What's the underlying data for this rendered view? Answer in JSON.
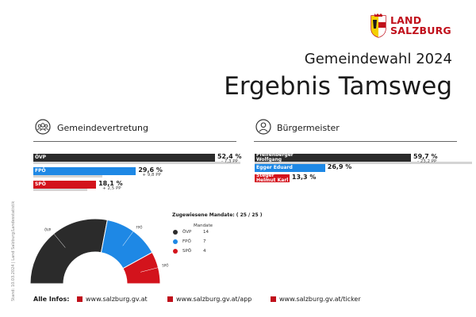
{
  "brand": {
    "line1": "LAND",
    "line2": "SALZBURG",
    "color": "#c0101b"
  },
  "event": "Gemeindewahl 2024",
  "title": "Ergebnis Tamsweg",
  "council": {
    "heading": "Gemeindevertretung",
    "icon": "people-group-icon"
  },
  "mayor": {
    "heading": "Bürgermeister",
    "icon": "person-icon"
  },
  "chart_data": [
    {
      "type": "bar",
      "orientation": "horizontal",
      "categories": [
        "ÖVP",
        "FPÖ",
        "SPÖ"
      ],
      "values": [
        52.4,
        29.6,
        18.1
      ],
      "value_labels": [
        "52,4 %",
        "29,6 %",
        "18,1 %"
      ],
      "previous_values": [
        59.7,
        19.8,
        15.6
      ],
      "change_labels": [
        "- 7,3 PP",
        "+ 9,8 PP",
        "+ 2,5 PP"
      ],
      "colors": [
        "#2b2b2b",
        "#1e88e5",
        "#d3131c"
      ],
      "xlim": [
        0,
        100
      ]
    },
    {
      "type": "bar",
      "orientation": "horizontal",
      "categories": [
        [
          "Pfeifenberger",
          "Wolfgang"
        ],
        [
          "Egger Eduard"
        ],
        [
          "Steger",
          "Helmut Karl"
        ]
      ],
      "values": [
        59.7,
        26.9,
        13.3
      ],
      "value_labels": [
        "59,7 %",
        "26,9 %",
        "13,3 %"
      ],
      "previous_values": [
        82.9,
        null,
        null
      ],
      "change_labels": [
        "- 23,2 PP",
        "",
        ""
      ],
      "colors": [
        "#2b2b2b",
        "#1e88e5",
        "#d3131c"
      ],
      "xlim": [
        0,
        100
      ]
    },
    {
      "type": "pie",
      "shape": "semicircle",
      "title": "Zugewiesene Mandate: ( 25 / 25 )",
      "legend_header": "Mandate",
      "categories": [
        "ÖVP",
        "FPÖ",
        "SPÖ"
      ],
      "values": [
        14,
        7,
        4
      ],
      "colors": [
        "#2b2b2b",
        "#1e88e5",
        "#d3131c"
      ]
    }
  ],
  "side_note": "Stand: 10.03.2024 | Land Salzburg/Landesstatistik",
  "footer": {
    "label": "Alle Infos:",
    "links": [
      "www.salzburg.gv.at",
      "www.salzburg.gv.at/app",
      "www.salzburg.gv.at/ticker"
    ]
  }
}
